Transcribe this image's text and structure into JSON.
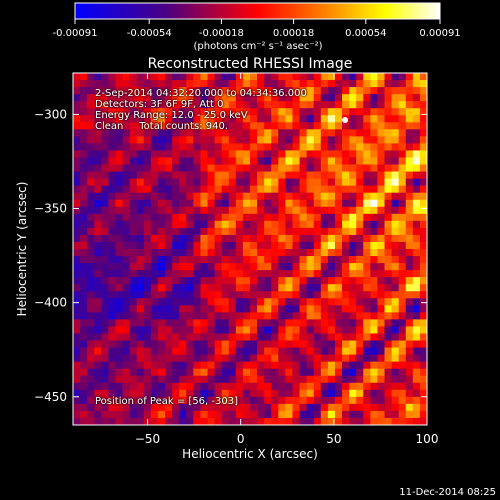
{
  "chart_data": {
    "type": "heatmap",
    "title": "Reconstructed RHESSI Image",
    "xlabel": "Heliocentric X (arcsec)",
    "ylabel": "Heliocentric Y (arcsec)",
    "xlim": [
      -90,
      100
    ],
    "ylim": [
      -465,
      -278
    ],
    "x_ticks": [
      -50,
      0,
      50,
      100
    ],
    "y_ticks": [
      -300,
      -350,
      -400,
      -450
    ],
    "x_tick_labels": [
      "−50",
      "0",
      "50",
      "100"
    ],
    "y_tick_labels": [
      "−300",
      "−350",
      "−400",
      "−450"
    ],
    "colorbar": {
      "range": [
        -0.00091,
        0.00091
      ],
      "ticks": [
        -0.00091,
        -0.00054,
        -0.00018,
        0.00018,
        0.00054,
        0.00091
      ],
      "tick_labels": [
        "-0.00091",
        "-0.00054",
        "-0.00018",
        "0.00018",
        "0.00054",
        "0.00091"
      ],
      "units_label": "(photons cm⁻² s⁻¹ asec⁻²)",
      "colors": [
        "#0000ff",
        "#4b0082",
        "#ff0000",
        "#ff8c00",
        "#ffff00",
        "#ffffff"
      ]
    },
    "annotations": [
      "2-Sep-2014 04:32:20.000 to 04:34:36.000",
      "Detectors: 3F 6F 9F, Att 0",
      "Energy Range: 12.0 - 25.0 keV",
      "Clean     Total counts: 940.",
      "Position of Peak = [56, -303]"
    ],
    "peak": [
      56,
      -303
    ],
    "grid": false
  },
  "footer": {
    "timestamp": "11-Dec-2014 08:25"
  }
}
